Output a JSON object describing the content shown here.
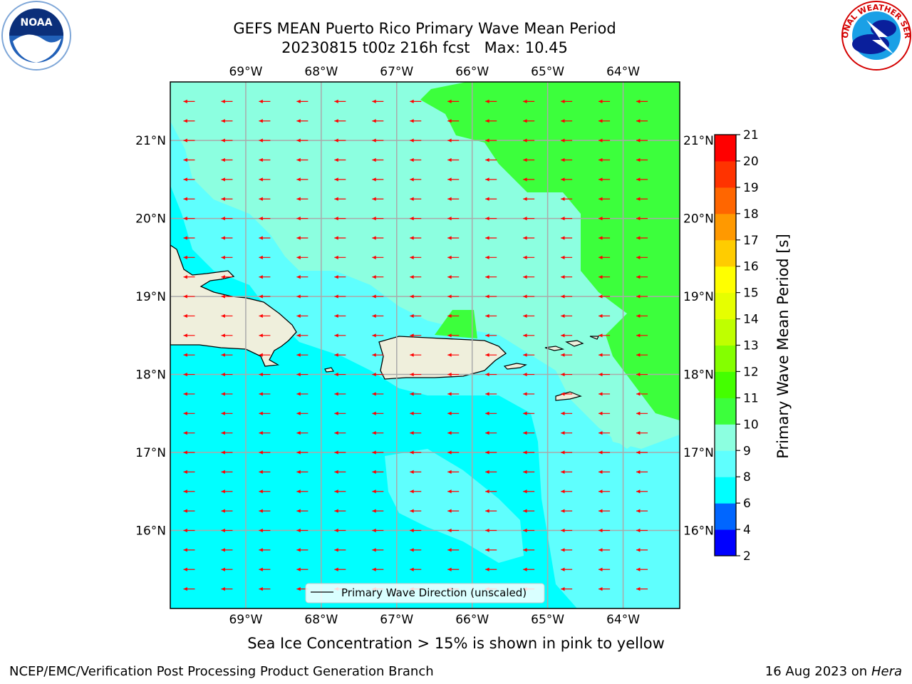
{
  "header": {
    "title_line1": "GEFS MEAN Puerto Rico Primary Wave Mean Period",
    "title_line2": "20230815 t00z 216h fcst   Max: 10.45"
  },
  "logos": {
    "left": {
      "name": "noaa-logo",
      "text": "NOAA",
      "ring_text": "NATIONAL OCEANIC AND ATMOSPHERIC ADMINISTRATION · U.S. DEPARTMENT OF COMMERCE",
      "colors": [
        "#1a5fb4",
        "#ffffff",
        "#0a2a6b"
      ]
    },
    "right": {
      "name": "nws-logo",
      "ring_text": "NATIONAL WEATHER SERVICE",
      "colors": [
        "#d40000",
        "#1a8fe0",
        "#0a1f9b"
      ]
    }
  },
  "map": {
    "lon_range": [
      -70.0,
      -63.25
    ],
    "lat_range": [
      15.0,
      21.75
    ],
    "lon_ticks": [
      {
        "value": -69,
        "label": "69°W"
      },
      {
        "value": -68,
        "label": "68°W"
      },
      {
        "value": -67,
        "label": "67°W"
      },
      {
        "value": -66,
        "label": "66°W"
      },
      {
        "value": -65,
        "label": "65°W"
      },
      {
        "value": -64,
        "label": "64°W"
      }
    ],
    "lat_ticks": [
      {
        "value": 16,
        "label": "16°N"
      },
      {
        "value": 17,
        "label": "17°N"
      },
      {
        "value": 18,
        "label": "18°N"
      },
      {
        "value": 19,
        "label": "19°N"
      },
      {
        "value": 20,
        "label": "20°N"
      },
      {
        "value": 21,
        "label": "21°N"
      }
    ],
    "grid": true,
    "background_fill_color": "#00ffff",
    "land_color": "#efefdc",
    "arrow_color": "#ff0000",
    "arrow_direction_deg": 180,
    "legend": {
      "label": "Primary Wave Direction (unscaled)",
      "placement": "bottom-center"
    }
  },
  "colorbar": {
    "label": "Primary Wave Mean Period [s]",
    "ticks": [
      "2",
      "4",
      "6",
      "8",
      "9",
      "10",
      "11",
      "12",
      "13",
      "14",
      "15",
      "16",
      "17",
      "18",
      "19",
      "20",
      "21"
    ],
    "colors": [
      "#0000ff",
      "#0066ff",
      "#00ffff",
      "#5ffffe",
      "#8cffe0",
      "#3cff3c",
      "#44ff00",
      "#84ff00",
      "#bfff00",
      "#e6ff00",
      "#ffff00",
      "#ffcc00",
      "#ff9900",
      "#ff6600",
      "#ff3300",
      "#ff0000"
    ]
  },
  "footer": {
    "ice_note": "Sea Ice Concentration > 15% is shown in pink to yellow",
    "left": "NCEP/EMC/Verification Post Processing Product Generation Branch",
    "right_date": "16 Aug 2023 on",
    "right_host": "Hera"
  }
}
